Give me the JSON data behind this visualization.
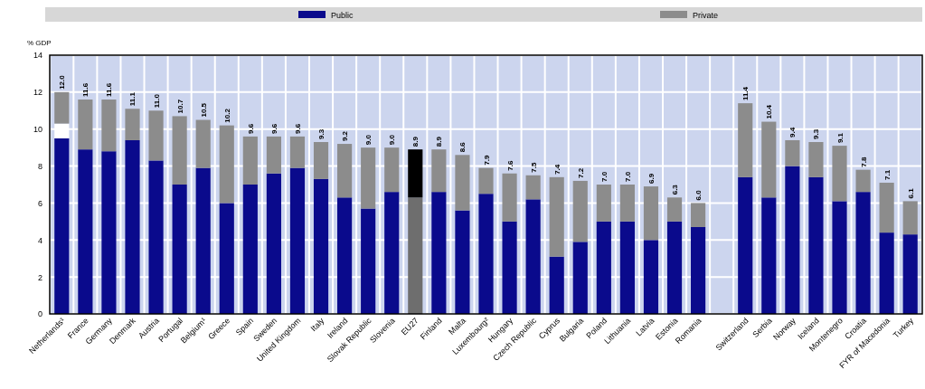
{
  "chart_data": {
    "type": "bar",
    "stacked": true,
    "ylabel": "% GDP",
    "categories": [
      "Netherlands¹",
      "France",
      "Germany",
      "Denmark",
      "Austria",
      "Portugal",
      "Belgium¹",
      "Greece",
      "Spain",
      "Sweden",
      "United Kingdom",
      "Italy",
      "Ireland",
      "Slovak Republic",
      "Slovenia",
      "EU27",
      "Finland",
      "Malta",
      "Luxembourg²",
      "Hungary",
      "Czech Republic",
      "Cyprus",
      "Bulgaria",
      "Poland",
      "Lithuania",
      "Latvia",
      "Estonia",
      "Romania",
      null,
      "Switzerland",
      "Serbia",
      "Norway",
      "Iceland",
      "Montenegro",
      "Croatia",
      "FYR of Macedonia",
      "Turkey"
    ],
    "series": [
      {
        "name": "Public",
        "color": "#0a0a8c",
        "colors": [
          "#0a0a8c",
          "#0a0a8c",
          "#0a0a8c",
          "#0a0a8c",
          "#0a0a8c",
          "#0a0a8c",
          "#0a0a8c",
          "#0a0a8c",
          "#0a0a8c",
          "#0a0a8c",
          "#0a0a8c",
          "#0a0a8c",
          "#0a0a8c",
          "#0a0a8c",
          "#0a0a8c",
          "#6e6e6e",
          "#0a0a8c",
          "#0a0a8c",
          "#0a0a8c",
          "#0a0a8c",
          "#0a0a8c",
          "#0a0a8c",
          "#0a0a8c",
          "#0a0a8c",
          "#0a0a8c",
          "#0a0a8c",
          "#0a0a8c",
          "#0a0a8c",
          null,
          "#0a0a8c",
          "#0a0a8c",
          "#0a0a8c",
          "#0a0a8c",
          "#0a0a8c",
          "#0a0a8c",
          "#0a0a8c",
          "#0a0a8c"
        ],
        "values": [
          9.5,
          8.9,
          8.8,
          9.4,
          8.3,
          7.0,
          7.9,
          6.0,
          7.0,
          7.6,
          7.9,
          7.3,
          6.3,
          5.7,
          6.6,
          6.3,
          6.6,
          5.6,
          6.5,
          5.0,
          6.2,
          3.1,
          3.9,
          5.0,
          5.0,
          4.0,
          5.0,
          4.7,
          null,
          7.4,
          6.3,
          8.0,
          7.4,
          6.1,
          6.6,
          4.4,
          4.3
        ]
      },
      {
        "color": "#ffffff",
        "values": [
          0.8,
          null,
          null,
          null,
          null,
          null,
          null,
          null,
          null,
          null,
          null,
          null,
          null,
          null,
          null,
          null,
          null,
          null,
          null,
          null,
          null,
          null,
          null,
          null,
          null,
          null,
          null,
          null,
          null,
          null,
          null,
          null,
          null,
          null,
          null,
          null,
          null
        ]
      },
      {
        "name": "Private",
        "color": "#8c8c8c",
        "colors": [
          "#8c8c8c",
          "#8c8c8c",
          "#8c8c8c",
          "#8c8c8c",
          "#8c8c8c",
          "#8c8c8c",
          "#8c8c8c",
          "#8c8c8c",
          "#8c8c8c",
          "#8c8c8c",
          "#8c8c8c",
          "#8c8c8c",
          "#8c8c8c",
          "#8c8c8c",
          "#8c8c8c",
          "#000000",
          "#8c8c8c",
          "#8c8c8c",
          "#8c8c8c",
          "#8c8c8c",
          "#8c8c8c",
          "#8c8c8c",
          "#8c8c8c",
          "#8c8c8c",
          "#8c8c8c",
          "#8c8c8c",
          "#8c8c8c",
          "#8c8c8c",
          null,
          "#8c8c8c",
          "#8c8c8c",
          "#8c8c8c",
          "#8c8c8c",
          "#8c8c8c",
          "#8c8c8c",
          "#8c8c8c",
          "#8c8c8c"
        ],
        "values": [
          1.7,
          2.7,
          2.8,
          1.7,
          2.7,
          3.7,
          2.6,
          4.2,
          2.6,
          2.0,
          1.7,
          2.0,
          2.9,
          3.3,
          2.4,
          2.6,
          2.3,
          3.0,
          1.4,
          2.6,
          1.3,
          4.3,
          3.3,
          2.0,
          2.0,
          2.9,
          1.3,
          1.3,
          null,
          4.0,
          4.1,
          1.4,
          1.9,
          3.0,
          1.2,
          2.7,
          1.8
        ]
      }
    ],
    "totals": [
      "12.0",
      "11.6",
      "11.6",
      "11.1",
      "11.0",
      "10.7",
      "10.5",
      "10.2",
      "9.6",
      "9.6",
      "9.6",
      "9.3",
      "9.2",
      "9.0",
      "9.0",
      "8.9",
      "8.9",
      "8.6",
      "7.9",
      "7.6",
      "7.5",
      "7.4",
      "7.2",
      "7.0",
      "7.0",
      "6.9",
      "6.3",
      "6.0",
      null,
      "11.4",
      "10.4",
      "9.4",
      "9.3",
      "9.1",
      "7.8",
      "7.1",
      "6.1"
    ],
    "ylim": [
      0,
      14
    ],
    "yticks": [
      0,
      2,
      4,
      6,
      8,
      10,
      12,
      14
    ],
    "grid": true,
    "legend": "top"
  }
}
